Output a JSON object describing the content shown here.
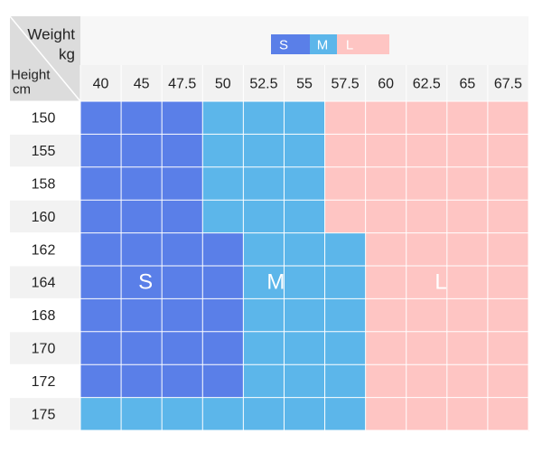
{
  "chart_data": {
    "type": "heatmap",
    "corner": {
      "x_label": "Weight",
      "x_unit": "kg",
      "y_label": "Height",
      "y_unit": "cm"
    },
    "legend": [
      {
        "label": "S",
        "color": "#5a7fe8"
      },
      {
        "label": "M",
        "color": "#5cb6ea"
      },
      {
        "label": "L",
        "color": "#fec5c3"
      }
    ],
    "weights": [
      "40",
      "45",
      "47.5",
      "50",
      "52.5",
      "55",
      "57.5",
      "60",
      "62.5",
      "65",
      "67.5"
    ],
    "heights": [
      "150",
      "155",
      "158",
      "160",
      "162",
      "164",
      "168",
      "170",
      "172",
      "175"
    ],
    "cells": [
      [
        "S",
        "S",
        "S",
        "M",
        "M",
        "M",
        "L",
        "L",
        "L",
        "L",
        "L"
      ],
      [
        "S",
        "S",
        "S",
        "M",
        "M",
        "M",
        "L",
        "L",
        "L",
        "L",
        "L"
      ],
      [
        "S",
        "S",
        "S",
        "M",
        "M",
        "M",
        "L",
        "L",
        "L",
        "L",
        "L"
      ],
      [
        "S",
        "S",
        "S",
        "M",
        "M",
        "M",
        "L",
        "L",
        "L",
        "L",
        "L"
      ],
      [
        "S",
        "S",
        "S",
        "S",
        "M",
        "M",
        "M",
        "L",
        "L",
        "L",
        "L"
      ],
      [
        "S",
        "S",
        "S",
        "S",
        "M",
        "M",
        "M",
        "L",
        "L",
        "L",
        "L"
      ],
      [
        "S",
        "S",
        "S",
        "S",
        "M",
        "M",
        "M",
        "L",
        "L",
        "L",
        "L"
      ],
      [
        "S",
        "S",
        "S",
        "S",
        "M",
        "M",
        "M",
        "L",
        "L",
        "L",
        "L"
      ],
      [
        "S",
        "S",
        "S",
        "S",
        "M",
        "M",
        "M",
        "L",
        "L",
        "L",
        "L"
      ],
      [
        "M",
        "M",
        "M",
        "M",
        "M",
        "M",
        "M",
        "L",
        "L",
        "L",
        "L"
      ]
    ],
    "region_labels": [
      "S",
      "M",
      "L"
    ],
    "colors": {
      "header_bg": "#f2f2f2",
      "corner_bg": "#dcdcdc",
      "grid_line": "#ffffff",
      "text": "#222222"
    }
  }
}
